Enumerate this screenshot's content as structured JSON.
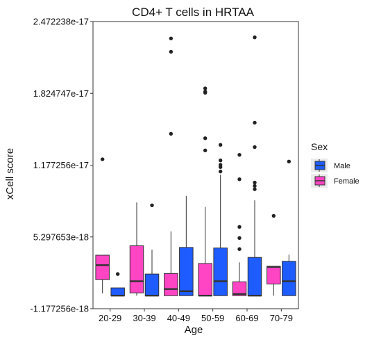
{
  "chart_data": {
    "type": "boxplot",
    "title": "CD4+ T cells in HRTAA",
    "xlabel": "Age",
    "ylabel": "xCell score",
    "categories": [
      "20-29",
      "30-39",
      "40-49",
      "50-59",
      "60-69",
      "70-79"
    ],
    "ylim": [
      -1.177256e-18,
      2.472238e-17
    ],
    "yticks": [
      -1.177256e-18,
      5.297653e-18,
      1.177256e-17,
      1.824747e-17,
      2.472238e-17
    ],
    "ytick_labels": [
      "-1.177256e-18",
      "5.297653e-18",
      "1.177256e-17",
      "1.824747e-17",
      "2.472238e-17"
    ],
    "grid": false,
    "legend": {
      "title": "Sex",
      "position": "right",
      "entries": [
        {
          "name": "Male",
          "color": "#1f5cff"
        },
        {
          "name": "Female",
          "color": "#ff44c4"
        }
      ]
    },
    "series": [
      {
        "name": "Female",
        "color": "#ff44c4",
        "boxes": [
          {
            "category": "20-29",
            "min": 2e-19,
            "q1": 1.45e-18,
            "median": 2.75e-18,
            "q3": 3.65e-18,
            "max": 3.65e-18,
            "outliers": [
              1.23e-17
            ]
          },
          {
            "category": "30-39",
            "min": 0.0,
            "q1": 2.5e-19,
            "median": 1.3e-18,
            "q3": 4.5e-18,
            "max": 8.4e-18,
            "outliers": []
          },
          {
            "category": "40-49",
            "min": 0.0,
            "q1": 0.0,
            "median": 6e-19,
            "q3": 2e-18,
            "max": 5.8e-18,
            "outliers": [
              2.32e-17,
              2.2e-17,
              1.46e-17
            ]
          },
          {
            "category": "50-59",
            "min": 0.0,
            "q1": 0.0,
            "median": 0.0,
            "q3": 2.9e-18,
            "max": 8e-18,
            "outliers": [
              1.87e-17,
              1.84e-17,
              1.83e-17,
              1.42e-17,
              1.31e-17
            ]
          },
          {
            "category": "60-69",
            "min": 0.0,
            "q1": 0.0,
            "median": 1.5e-19,
            "q3": 1.25e-18,
            "max": 3e-18,
            "outliers": [
              1.27e-17,
              1.05e-17,
              6.2e-18,
              5.2e-18,
              4.2e-18
            ]
          },
          {
            "category": "70-79",
            "min": 0.0,
            "q1": 1.05e-18,
            "median": 2.6e-18,
            "q3": 2.65e-18,
            "max": 2.65e-18,
            "outliers": [
              7.2e-18
            ]
          }
        ]
      },
      {
        "name": "Male",
        "color": "#1f5cff",
        "boxes": [
          {
            "category": "20-29",
            "min": 0.0,
            "q1": 0.0,
            "median": 0.0,
            "q3": 7e-19,
            "max": 7e-19,
            "outliers": [
              1.95e-18
            ]
          },
          {
            "category": "30-39",
            "min": 0.0,
            "q1": 0.0,
            "median": 0.0,
            "q3": 1.95e-18,
            "max": 4.15e-18,
            "outliers": [
              8.15e-18
            ]
          },
          {
            "category": "40-49",
            "min": 0.0,
            "q1": 0.0,
            "median": 4e-19,
            "q3": 4.35e-18,
            "max": 9e-18,
            "outliers": []
          },
          {
            "category": "50-59",
            "min": 0.0,
            "q1": 0.0,
            "median": 1.3e-18,
            "q3": 4.3e-18,
            "max": 1.09e-17,
            "outliers": [
              1.36e-17,
              1.22e-17,
              1.12e-17,
              1.16e-17,
              1.18e-17
            ]
          },
          {
            "category": "60-69",
            "min": 0.0,
            "q1": 0.0,
            "median": 0.0,
            "q3": 3.45e-18,
            "max": 8.6e-18,
            "outliers": [
              2.33e-17,
              1.56e-17,
              1.34e-17,
              1.02e-17,
              9.9e-18,
              9.6e-18
            ]
          },
          {
            "category": "70-79",
            "min": 0.0,
            "q1": 0.0,
            "median": 1.3e-18,
            "q3": 3.1e-18,
            "max": 3.7e-18,
            "outliers": [
              1.21e-17
            ]
          }
        ]
      }
    ]
  }
}
